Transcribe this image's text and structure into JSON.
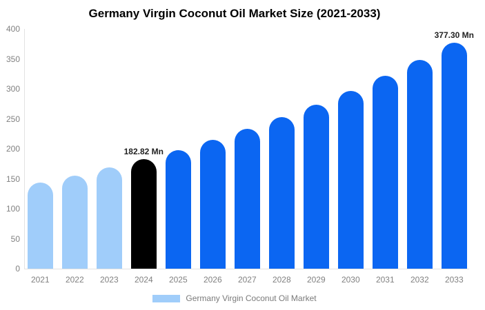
{
  "title": "Germany Virgin Coconut Oil Market Size (2021-2033)",
  "legend": {
    "label": "Germany Virgin Coconut Oil Market",
    "swatch_color": "#a0cdfa"
  },
  "colors": {
    "light_blue": "#a0cdfa",
    "blue": "#0b66f2",
    "black": "#000000",
    "axis_text": "#808080",
    "axis_line": "#e2e2e2",
    "annotation_text": "#222222",
    "background": "#ffffff"
  },
  "chart_data": {
    "type": "bar",
    "title": "Germany Virgin Coconut Oil Market Size (2021-2033)",
    "categories": [
      "2021",
      "2022",
      "2023",
      "2024",
      "2025",
      "2026",
      "2027",
      "2028",
      "2029",
      "2030",
      "2031",
      "2032",
      "2033"
    ],
    "values": [
      143.6,
      155.7,
      168.7,
      182.82,
      198.2,
      214.8,
      232.9,
      252.4,
      273.6,
      296.6,
      321.4,
      348.3,
      377.3
    ],
    "bar_colors": [
      "#a0cdfa",
      "#a0cdfa",
      "#a0cdfa",
      "#000000",
      "#0b66f2",
      "#0b66f2",
      "#0b66f2",
      "#0b66f2",
      "#0b66f2",
      "#0b66f2",
      "#0b66f2",
      "#0b66f2",
      "#0b66f2"
    ],
    "annotations": [
      {
        "category": "2024",
        "text": "182.82 Mn"
      },
      {
        "category": "2033",
        "text": "377.30 Mn"
      }
    ],
    "xlabel": "",
    "ylabel": "",
    "ylim": [
      0,
      400
    ],
    "yticks": [
      0,
      50,
      100,
      150,
      200,
      250,
      300,
      350,
      400
    ],
    "grid": false,
    "legend_position": "bottom",
    "legend_entries": [
      "Germany Virgin Coconut Oil Market"
    ]
  }
}
